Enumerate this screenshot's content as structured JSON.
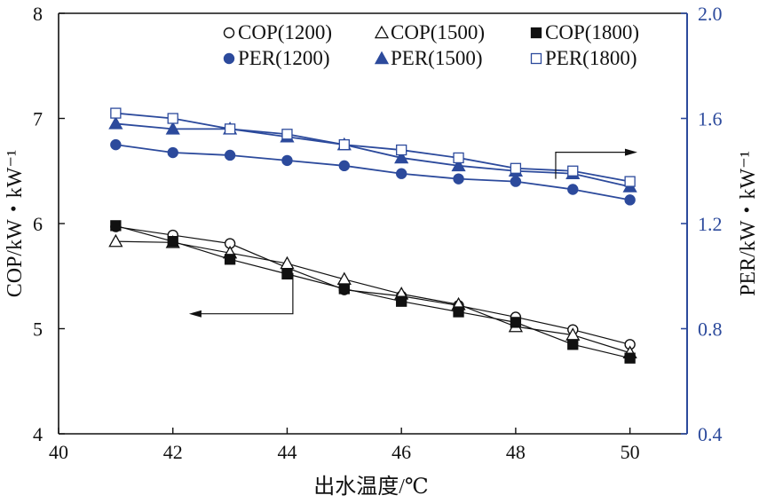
{
  "chart_data": {
    "type": "line",
    "xlabel": "出水温度/℃",
    "ylabel_left": "COP/kW・kW⁻¹",
    "ylabel_right": "PER/kW・kW⁻¹",
    "xlim": [
      40,
      51
    ],
    "ylim_left": [
      4,
      8
    ],
    "ylim_right": [
      0.4,
      2.0
    ],
    "x_ticks": [
      40,
      42,
      44,
      46,
      48,
      50
    ],
    "y_left_ticks": [
      4,
      5,
      6,
      7,
      8
    ],
    "y_right_ticks": [
      0.4,
      0.8,
      1.2,
      1.6,
      2.0
    ],
    "x_tick_labels": [
      "40",
      "42",
      "44",
      "46",
      "48",
      "50"
    ],
    "y_left_tick_labels": [
      "4",
      "5",
      "6",
      "7",
      "8"
    ],
    "y_right_tick_labels": [
      "0.4",
      "0.8",
      "1.2",
      "1.6",
      "2.0"
    ],
    "x": [
      41,
      42,
      43,
      44,
      45,
      46,
      47,
      48,
      49,
      50
    ],
    "legend_position": "top-right",
    "colors": {
      "cop": "#111111",
      "per": "#2c4a9c",
      "right_axis": "#2c4a9c"
    },
    "series": [
      {
        "name": "COP(1200)",
        "axis": "left",
        "marker": "circle-open",
        "values": [
          5.97,
          5.89,
          5.81,
          5.58,
          5.37,
          5.31,
          5.22,
          5.11,
          4.99,
          4.85
        ]
      },
      {
        "name": "COP(1500)",
        "axis": "left",
        "marker": "triangle-open",
        "values": [
          5.83,
          5.82,
          5.72,
          5.62,
          5.47,
          5.33,
          5.23,
          5.02,
          4.94,
          4.77
        ]
      },
      {
        "name": "COP(1800)",
        "axis": "left",
        "marker": "square-filled",
        "values": [
          5.98,
          5.83,
          5.66,
          5.52,
          5.38,
          5.26,
          5.16,
          5.06,
          4.85,
          4.72
        ]
      },
      {
        "name": "PER(1200)",
        "axis": "right",
        "marker": "circle-filled",
        "values": [
          1.5,
          1.47,
          1.46,
          1.44,
          1.42,
          1.39,
          1.37,
          1.36,
          1.33,
          1.29
        ]
      },
      {
        "name": "PER(1500)",
        "axis": "right",
        "marker": "triangle-filled",
        "values": [
          1.58,
          1.56,
          1.56,
          1.53,
          1.5,
          1.45,
          1.42,
          1.4,
          1.39,
          1.34
        ]
      },
      {
        "name": "PER(1800)",
        "axis": "right",
        "marker": "square-open",
        "values": [
          1.62,
          1.6,
          1.56,
          1.54,
          1.5,
          1.48,
          1.45,
          1.41,
          1.4,
          1.36
        ]
      }
    ],
    "annotations": [
      {
        "text": "",
        "type": "arrow",
        "direction": "right",
        "refers_to": "PER",
        "anchor_x": 48.7,
        "anchor_y_right": 1.37
      },
      {
        "text": "",
        "type": "arrow",
        "direction": "left",
        "refers_to": "COP",
        "anchor_x": 44.1,
        "anchor_y_left": 5.53
      }
    ]
  }
}
